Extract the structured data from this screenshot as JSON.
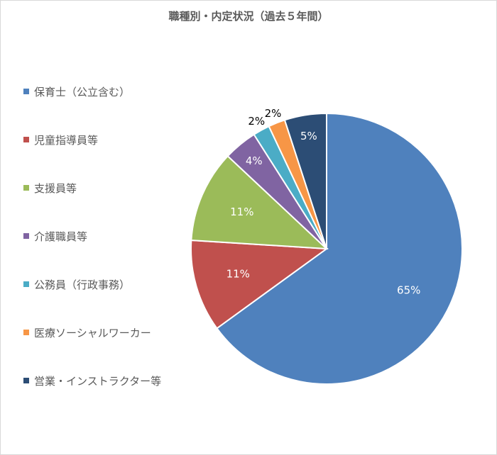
{
  "chart_data": {
    "type": "pie",
    "title": "職種別・内定状況（過去５年間）",
    "categories": [
      "保育士（公立含む）",
      "児童指導員等",
      "支援員等",
      "介護職員等",
      "公務員（行政事務）",
      "医療ソーシャルワーカー",
      "営業・インストラクター等"
    ],
    "values": [
      65,
      11,
      11,
      4,
      2,
      2,
      5
    ],
    "value_labels": [
      "65%",
      "11%",
      "11%",
      "4%",
      "2%",
      "2%",
      "5%"
    ],
    "colors": [
      "#4f81bd",
      "#c0504d",
      "#9bbb59",
      "#8064a2",
      "#4bacc6",
      "#f79646",
      "#2c4d75"
    ],
    "label_colors": [
      "#ffffff",
      "#ffffff",
      "#ffffff",
      "#ffffff",
      "#000000",
      "#000000",
      "#ffffff"
    ],
    "legend_position": "left"
  }
}
